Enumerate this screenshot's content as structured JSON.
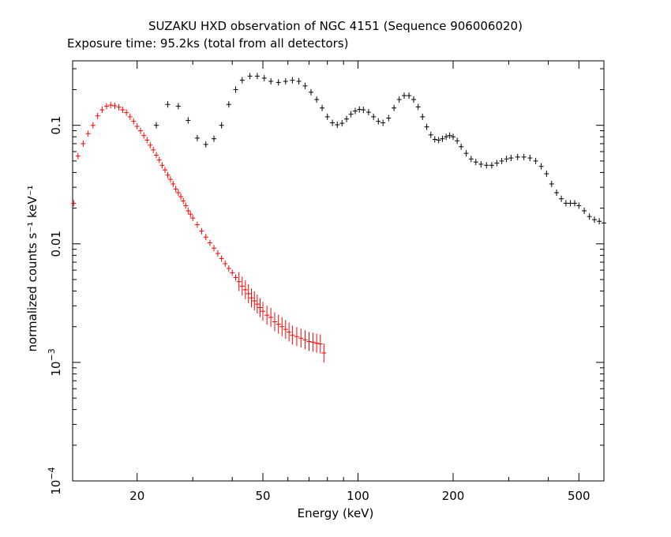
{
  "chart_data": {
    "type": "scatter",
    "title": "SUZAKU HXD observation of NGC 4151 (Sequence 906006020)",
    "subtitle": "Exposure time: 95.2ks (total from all detectors)",
    "xlabel": "Energy (keV)",
    "ylabel": "normalized counts s⁻¹ keV⁻¹",
    "xscale": "log",
    "yscale": "log",
    "xlim": [
      12.5,
      600
    ],
    "ylim": [
      0.0001,
      0.35
    ],
    "grid": false,
    "x_ticks": [
      {
        "value": 20,
        "label": "20"
      },
      {
        "value": 50,
        "label": "50"
      },
      {
        "value": 100,
        "label": "100"
      },
      {
        "value": 200,
        "label": "200"
      },
      {
        "value": 500,
        "label": "500"
      }
    ],
    "y_ticks": [
      {
        "value": 0.1,
        "label": "0.1"
      },
      {
        "value": 0.01,
        "label": "0.01"
      },
      {
        "value": 0.001,
        "label": "10",
        "exp": "−3"
      },
      {
        "value": 0.0001,
        "label": "10",
        "exp": "−4"
      }
    ],
    "series": [
      {
        "color": "#ff0000",
        "points": [
          [
            12.6,
            0.022
          ],
          [
            13.0,
            0.055
          ],
          [
            13.5,
            0.07
          ],
          [
            14.0,
            0.085
          ],
          [
            14.5,
            0.1
          ],
          [
            15.0,
            0.12
          ],
          [
            15.5,
            0.135
          ],
          [
            16.0,
            0.145
          ],
          [
            16.5,
            0.148
          ],
          [
            17.0,
            0.146
          ],
          [
            17.5,
            0.142
          ],
          [
            18.0,
            0.135
          ],
          [
            18.5,
            0.128
          ],
          [
            19.0,
            0.118
          ],
          [
            19.5,
            0.108
          ],
          [
            20.0,
            0.098
          ],
          [
            20.5,
            0.09
          ],
          [
            21.0,
            0.082
          ],
          [
            21.5,
            0.075
          ],
          [
            22.0,
            0.068
          ],
          [
            22.5,
            0.062
          ],
          [
            23.0,
            0.056
          ],
          [
            23.5,
            0.051
          ],
          [
            24.0,
            0.046
          ],
          [
            24.5,
            0.042
          ],
          [
            25.0,
            0.038
          ],
          [
            25.5,
            0.035
          ],
          [
            26.0,
            0.032
          ],
          [
            26.5,
            0.029
          ],
          [
            27.0,
            0.027
          ],
          [
            27.5,
            0.025
          ],
          [
            28.0,
            0.023
          ],
          [
            28.5,
            0.021
          ],
          [
            29.0,
            0.019
          ],
          [
            29.5,
            0.0178
          ],
          [
            30.0,
            0.0165
          ],
          [
            31.0,
            0.0145
          ],
          [
            32.0,
            0.0128
          ],
          [
            33.0,
            0.0114
          ],
          [
            34.0,
            0.0102
          ],
          [
            35.0,
            0.0092
          ],
          [
            36.0,
            0.0083
          ],
          [
            37.0,
            0.0075
          ],
          [
            38.0,
            0.0068
          ],
          [
            39.0,
            0.0062
          ],
          [
            40.0,
            0.0057
          ],
          [
            41.0,
            0.0052
          ],
          [
            42.0,
            0.0048
          ],
          [
            43.0,
            0.0044
          ],
          [
            44.0,
            0.0041
          ],
          [
            45.0,
            0.0038
          ],
          [
            46.0,
            0.0035
          ],
          [
            47.0,
            0.0033
          ],
          [
            48.0,
            0.0031
          ],
          [
            49.0,
            0.0029
          ],
          [
            50.0,
            0.0027
          ],
          [
            51.5,
            0.0025
          ],
          [
            53.0,
            0.0024
          ],
          [
            54.5,
            0.0022
          ],
          [
            56.0,
            0.0021
          ],
          [
            57.5,
            0.002
          ],
          [
            59.0,
            0.0019
          ],
          [
            60.5,
            0.0018
          ],
          [
            62.0,
            0.0017
          ],
          [
            64.0,
            0.00165
          ],
          [
            66.0,
            0.0016
          ],
          [
            68.0,
            0.00155
          ],
          [
            70.0,
            0.0015
          ],
          [
            72.0,
            0.00148
          ],
          [
            74.0,
            0.00145
          ],
          [
            76.0,
            0.00143
          ],
          [
            78.0,
            0.0012
          ]
        ]
      },
      {
        "color": "#000000",
        "points": [
          [
            23.0,
            0.1
          ],
          [
            25.0,
            0.15
          ],
          [
            27.0,
            0.145
          ],
          [
            29.0,
            0.11
          ],
          [
            31.0,
            0.078
          ],
          [
            33.0,
            0.069
          ],
          [
            35.0,
            0.077
          ],
          [
            37.0,
            0.1
          ],
          [
            39.0,
            0.15
          ],
          [
            41.0,
            0.2
          ],
          [
            43.0,
            0.24
          ],
          [
            45.5,
            0.26
          ],
          [
            48.0,
            0.26
          ],
          [
            50.5,
            0.25
          ],
          [
            53.0,
            0.235
          ],
          [
            56.0,
            0.23
          ],
          [
            59.0,
            0.235
          ],
          [
            62.0,
            0.24
          ],
          [
            65.0,
            0.235
          ],
          [
            68.0,
            0.215
          ],
          [
            71.0,
            0.19
          ],
          [
            74.0,
            0.165
          ],
          [
            77.0,
            0.14
          ],
          [
            80.0,
            0.118
          ],
          [
            83.0,
            0.105
          ],
          [
            86.0,
            0.101
          ],
          [
            89.0,
            0.104
          ],
          [
            92.0,
            0.113
          ],
          [
            95.0,
            0.124
          ],
          [
            98.0,
            0.132
          ],
          [
            101.0,
            0.136
          ],
          [
            104.0,
            0.135
          ],
          [
            108.0,
            0.129
          ],
          [
            112.0,
            0.118
          ],
          [
            116.0,
            0.108
          ],
          [
            120.0,
            0.105
          ],
          [
            125.0,
            0.115
          ],
          [
            130.0,
            0.14
          ],
          [
            135.0,
            0.165
          ],
          [
            140.0,
            0.178
          ],
          [
            145.0,
            0.178
          ],
          [
            150.0,
            0.165
          ],
          [
            155.0,
            0.143
          ],
          [
            160.0,
            0.118
          ],
          [
            165.0,
            0.097
          ],
          [
            170.0,
            0.083
          ],
          [
            175.0,
            0.076
          ],
          [
            180.0,
            0.075
          ],
          [
            185.0,
            0.077
          ],
          [
            190.0,
            0.08
          ],
          [
            195.0,
            0.082
          ],
          [
            200.0,
            0.08
          ],
          [
            206.0,
            0.074
          ],
          [
            212.0,
            0.066
          ],
          [
            220.0,
            0.058
          ],
          [
            228.0,
            0.052
          ],
          [
            236.0,
            0.049
          ],
          [
            245.0,
            0.047
          ],
          [
            255.0,
            0.046
          ],
          [
            265.0,
            0.046
          ],
          [
            275.0,
            0.048
          ],
          [
            285.0,
            0.05
          ],
          [
            295.0,
            0.052
          ],
          [
            305.0,
            0.053
          ],
          [
            320.0,
            0.054
          ],
          [
            335.0,
            0.054
          ],
          [
            350.0,
            0.053
          ],
          [
            365.0,
            0.05
          ],
          [
            380.0,
            0.045
          ],
          [
            395.0,
            0.039
          ],
          [
            410.0,
            0.032
          ],
          [
            425.0,
            0.027
          ],
          [
            440.0,
            0.024
          ],
          [
            455.0,
            0.022
          ],
          [
            470.0,
            0.022
          ],
          [
            485.0,
            0.022
          ],
          [
            500.0,
            0.021
          ],
          [
            520.0,
            0.019
          ],
          [
            540.0,
            0.017
          ],
          [
            560.0,
            0.016
          ],
          [
            580.0,
            0.0155
          ],
          [
            600.0,
            0.015
          ]
        ]
      }
    ]
  }
}
